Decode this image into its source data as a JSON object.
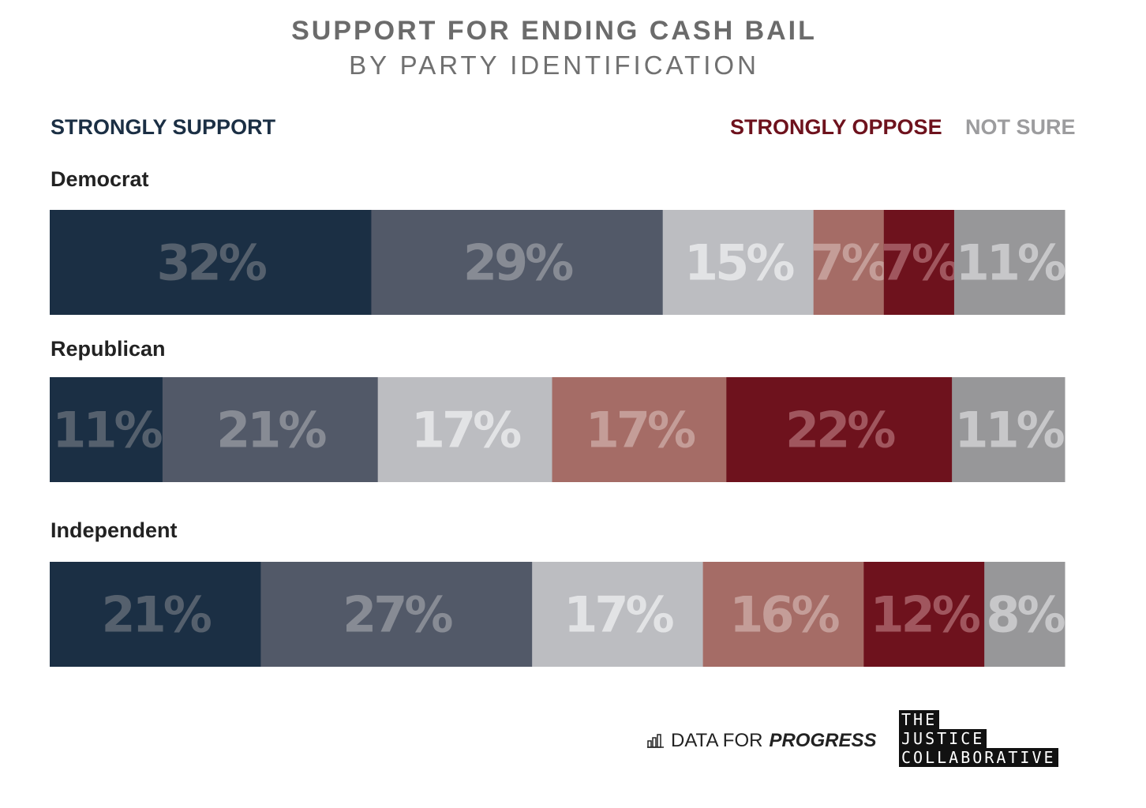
{
  "chart_data": {
    "type": "bar",
    "orientation": "horizontal-stacked-100",
    "title": "SUPPORT FOR ENDING CASH BAIL",
    "subtitle": "BY PARTY IDENTIFICATION",
    "legend": {
      "left": "STRONGLY SUPPORT",
      "right_oppose": "STRONGLY OPPOSE",
      "right_not_sure": "NOT SURE"
    },
    "segment_colors": [
      "#1b2f44",
      "#525968",
      "#bcbdc1",
      "#a56c66",
      "#6e121d",
      "#979799"
    ],
    "label_colors": [
      "#55606d",
      "#878b94",
      "#e2e3e5",
      "#c49d98",
      "#a0565e",
      "#c7c7c9"
    ],
    "categories": [
      "Democrat",
      "Republican",
      "Independent"
    ],
    "series": [
      {
        "values": [
          32,
          11,
          21
        ]
      },
      {
        "values": [
          29,
          21,
          27
        ]
      },
      {
        "values": [
          15,
          17,
          17
        ]
      },
      {
        "values": [
          7,
          17,
          16
        ]
      },
      {
        "values": [
          7,
          22,
          12
        ]
      },
      {
        "values": [
          11,
          11,
          8
        ]
      }
    ],
    "value_suffix": "%"
  },
  "logos": {
    "data_for_progress_prefix": "DATA FOR",
    "data_for_progress_bold": "PROGRESS",
    "justice_line1": "THE",
    "justice_line2": "JUSTICE",
    "justice_line3": "COLLABORATIVE"
  }
}
